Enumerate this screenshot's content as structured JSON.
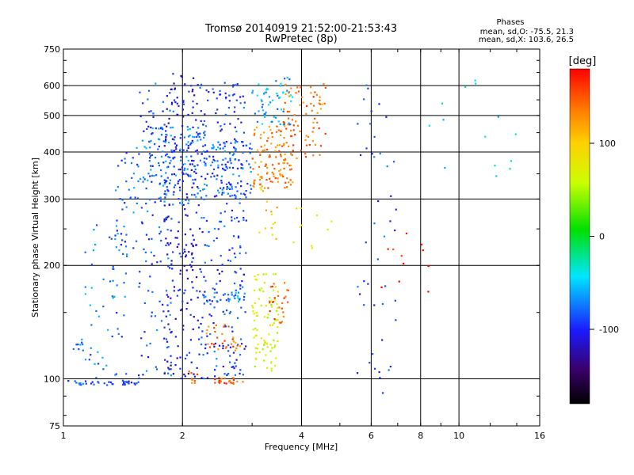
{
  "chart_data": {
    "type": "scatter",
    "title": "Tromsø 20140919 21:52:00-21:53:43",
    "subtitle": "RwPretec (8p)",
    "xlabel": "Frequency [MHz]",
    "ylabel": "Stationary phase Virtual Height [km]",
    "x_scale": "log",
    "y_scale": "log",
    "xlim": [
      1,
      16
    ],
    "ylim": [
      75,
      750
    ],
    "x_ticks": [
      1,
      2,
      4,
      6,
      8,
      10,
      16
    ],
    "y_ticks": [
      75,
      100,
      200,
      300,
      400,
      500,
      600,
      750
    ],
    "x_gridlines": [
      2,
      4,
      6,
      8,
      10
    ],
    "y_gridlines": [
      100,
      200,
      300,
      400,
      500,
      600
    ],
    "stats": {
      "heading": "Phases",
      "o_line": "mean, sd,O: -75.5, 21.3",
      "x_line": "mean, sd,X: 103.6, 26.5"
    },
    "colorbar": {
      "label": "[deg]",
      "range": [
        -180,
        180
      ],
      "ticks": [
        100,
        0,
        -100
      ],
      "colormap": "rainbow (black → purple → blue → cyan → green → yellow → orange → red)"
    },
    "clusters": [
      {
        "x": [
          0.99,
          1.55
        ],
        "y": [
          96,
          99
        ],
        "phase": -90,
        "n": 40
      },
      {
        "x": [
          1.06,
          1.15
        ],
        "y": [
          118,
          126
        ],
        "phase": -80,
        "n": 8
      },
      {
        "x": [
          1.1,
          1.45
        ],
        "y": [
          100,
          260
        ],
        "phase": -75,
        "n": 55
      },
      {
        "x": [
          1.35,
          1.55
        ],
        "y": [
          220,
          420
        ],
        "phase": -80,
        "n": 45
      },
      {
        "x": [
          1.55,
          1.9
        ],
        "y": [
          100,
          620
        ],
        "phase": -85,
        "n": 130
      },
      {
        "x": [
          1.8,
          2.2
        ],
        "y": [
          100,
          650
        ],
        "phase": -110,
        "n": 220
      },
      {
        "x": [
          2.2,
          2.9
        ],
        "y": [
          100,
          620
        ],
        "phase": -90,
        "n": 260
      },
      {
        "x": [
          1.6,
          2.3
        ],
        "y": [
          290,
          470
        ],
        "phase": -75,
        "n": 140
      },
      {
        "x": [
          2.3,
          3.0
        ],
        "y": [
          300,
          430
        ],
        "phase": -80,
        "n": 90
      },
      {
        "x": [
          2.4,
          2.9
        ],
        "y": [
          160,
          170
        ],
        "phase": -70,
        "n": 25
      },
      {
        "x": [
          2.3,
          2.8
        ],
        "y": [
          118,
          140
        ],
        "phase": 140,
        "n": 30
      },
      {
        "x": [
          2.4,
          2.9
        ],
        "y": [
          97,
          101
        ],
        "phase": 150,
        "n": 25
      },
      {
        "x": [
          2.05,
          2.2
        ],
        "y": [
          95,
          105
        ],
        "phase": 140,
        "n": 8
      },
      {
        "x": [
          3.0,
          3.5
        ],
        "y": [
          105,
          190
        ],
        "phase": 65,
        "n": 90
      },
      {
        "x": [
          3.1,
          3.5
        ],
        "y": [
          230,
          330
        ],
        "phase": 100,
        "n": 15
      },
      {
        "x": [
          3.3,
          3.7
        ],
        "y": [
          140,
          180
        ],
        "phase": 150,
        "n": 25
      },
      {
        "x": [
          3.0,
          3.8
        ],
        "y": [
          320,
          470
        ],
        "phase": 135,
        "n": 110
      },
      {
        "x": [
          3.0,
          3.8
        ],
        "y": [
          470,
          640
        ],
        "phase": -60,
        "n": 60
      },
      {
        "x": [
          3.6,
          4.6
        ],
        "y": [
          380,
          610
        ],
        "phase": 140,
        "n": 80
      },
      {
        "x": [
          3.8,
          4.8
        ],
        "y": [
          220,
          300
        ],
        "phase": 80,
        "n": 10
      },
      {
        "x": [
          5.5,
          7.0
        ],
        "y": [
          90,
          620
        ],
        "phase": -90,
        "n": 45
      },
      {
        "x": [
          6.2,
          8.5
        ],
        "y": [
          170,
          260
        ],
        "phase": 170,
        "n": 12
      },
      {
        "x": [
          8.0,
          14.0
        ],
        "y": [
          330,
          650
        ],
        "phase": -40,
        "n": 14
      }
    ]
  }
}
